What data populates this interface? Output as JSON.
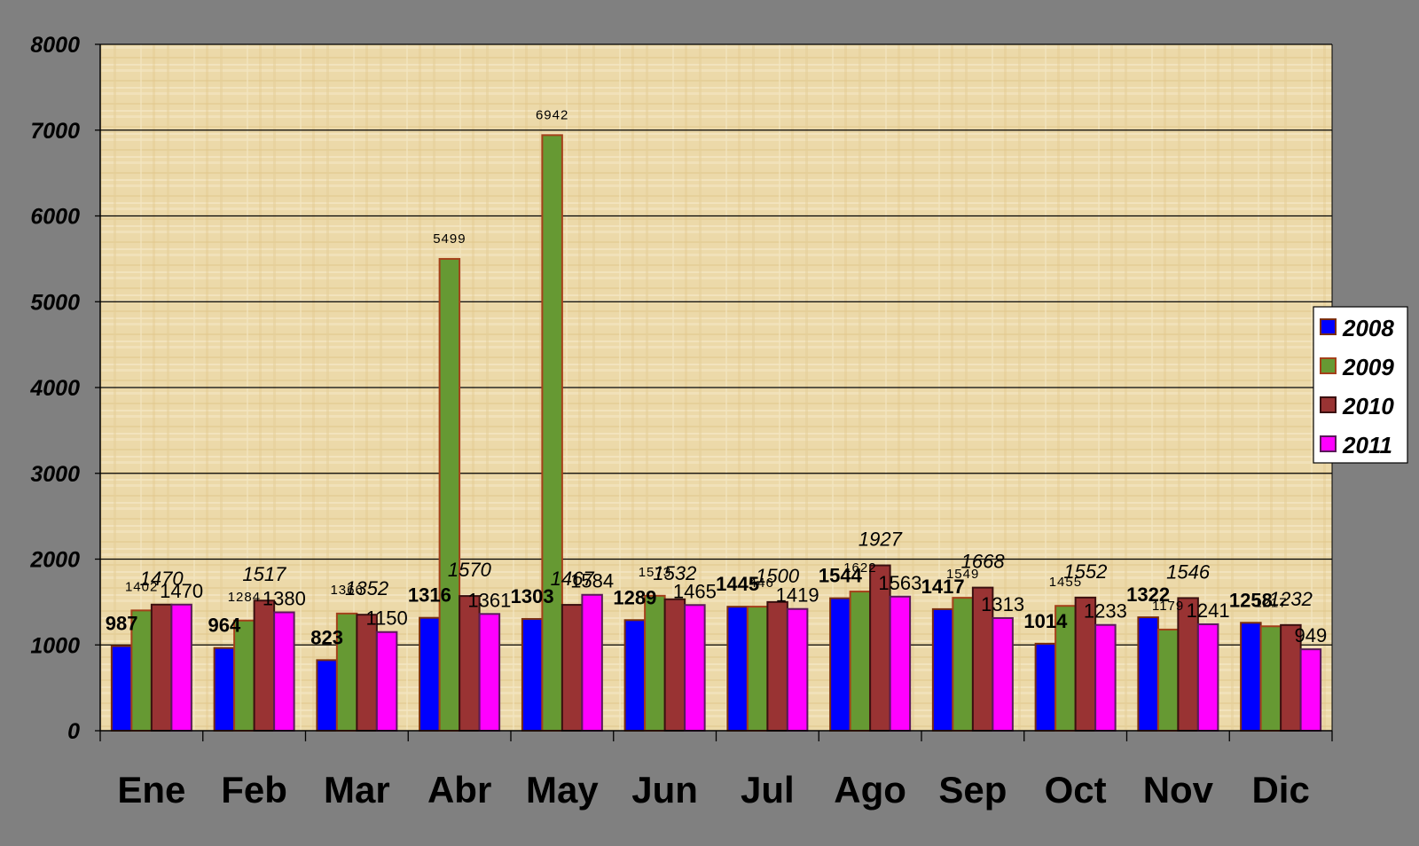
{
  "chart_data": {
    "type": "bar",
    "categories": [
      "Ene",
      "Feb",
      "Mar",
      "Abr",
      "May",
      "Jun",
      "Jul",
      "Ago",
      "Sep",
      "Oct",
      "Nov",
      "Dic"
    ],
    "series": [
      {
        "name": "2008",
        "color": "#0000ff",
        "values": [
          987,
          964,
          823,
          1316,
          1303,
          1289,
          1445,
          1544,
          1417,
          1014,
          1322,
          1258
        ]
      },
      {
        "name": "2009",
        "color": "#669933",
        "values": [
          1402,
          1284,
          1366,
          5499,
          6942,
          1573,
          1446,
          1622,
          1549,
          1455,
          1179,
          1217
        ]
      },
      {
        "name": "2010",
        "color": "#993333",
        "values": [
          1470,
          1517,
          1352,
          1570,
          1467,
          1532,
          1500,
          1927,
          1668,
          1552,
          1546,
          1232
        ]
      },
      {
        "name": "2011",
        "color": "#ff00ff",
        "values": [
          1470,
          1380,
          1150,
          1361,
          1584,
          1465,
          1419,
          1563,
          1313,
          1233,
          1241,
          949
        ]
      }
    ],
    "ylim": [
      0,
      8000
    ],
    "yticks": [
      0,
      1000,
      2000,
      3000,
      4000,
      5000,
      6000,
      7000,
      8000
    ],
    "grid": true,
    "legend": "right",
    "title": "",
    "xlabel": "",
    "ylabel": ""
  }
}
